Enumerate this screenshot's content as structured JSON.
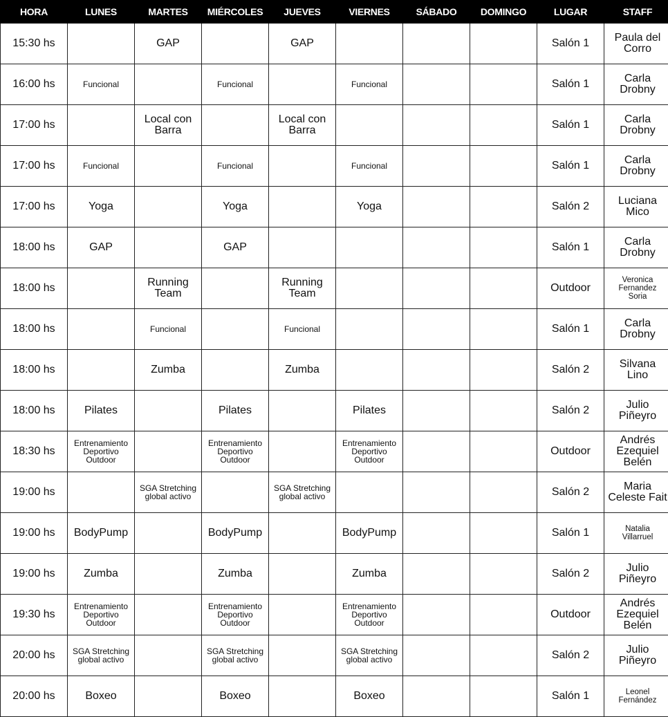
{
  "headers": [
    "HORA",
    "LUNES",
    "MARTES",
    "MIÉRCOLES",
    "JUEVES",
    "VIERNES",
    "SÁBADO",
    "DOMINGO",
    "LUGAR",
    "STAFF"
  ],
  "rows": [
    [
      "15:30 hs",
      "",
      "GAP",
      "",
      "GAP",
      "",
      "",
      "",
      "Salón 1",
      "Paula del\nCorro"
    ],
    [
      "16:00 hs",
      "Funcional",
      "",
      "Funcional",
      "",
      "Funcional",
      "",
      "",
      "Salón 1",
      "Carla\nDrobny"
    ],
    [
      "17:00 hs",
      "",
      "Local con\nBarra",
      "",
      "Local con\nBarra",
      "",
      "",
      "",
      "Salón 1",
      "Carla\nDrobny"
    ],
    [
      "17:00 hs",
      "Funcional",
      "",
      "Funcional",
      "",
      "Funcional",
      "",
      "",
      "Salón 1",
      "Carla\nDrobny"
    ],
    [
      "17:00 hs",
      "Yoga",
      "",
      "Yoga",
      "",
      "Yoga",
      "",
      "",
      "Salón 2",
      "Luciana\nMico"
    ],
    [
      "18:00 hs",
      "GAP",
      "",
      "GAP",
      "",
      "",
      "",
      "",
      "Salón 1",
      "Carla\nDrobny"
    ],
    [
      "18:00 hs",
      "",
      "Running\nTeam",
      "",
      "Running\nTeam",
      "",
      "",
      "",
      "Outdoor",
      "Veronica\nFernandez\nSoria"
    ],
    [
      "18:00 hs",
      "",
      "Funcional",
      "",
      "Funcional",
      "",
      "",
      "",
      "Salón 1",
      "Carla\nDrobny"
    ],
    [
      "18:00 hs",
      "",
      "Zumba",
      "",
      "Zumba",
      "",
      "",
      "",
      "Salón 2",
      "Silvana\nLino"
    ],
    [
      "18:00 hs",
      "Pilates",
      "",
      "Pilates",
      "",
      "Pilates",
      "",
      "",
      "Salón 2",
      "Julio\nPiñeyro"
    ],
    [
      "18:30 hs",
      "Entrenamiento\nDeportivo\nOutdoor",
      "",
      "Entrenamiento\nDeportivo\nOutdoor",
      "",
      "Entrenamiento\nDeportivo\nOutdoor",
      "",
      "",
      "Outdoor",
      "Andrés\nEzequiel\nBelén"
    ],
    [
      "19:00 hs",
      "",
      "SGA Stretching\nglobal activo",
      "",
      "SGA Stretching\nglobal activo",
      "",
      "",
      "",
      "Salón 2",
      "Maria\nCeleste Fait"
    ],
    [
      "19:00 hs",
      "BodyPump",
      "",
      "BodyPump",
      "",
      "BodyPump",
      "",
      "",
      "Salón 1",
      "Natalia\nVillarruel"
    ],
    [
      "19:00 hs",
      "Zumba",
      "",
      "Zumba",
      "",
      "Zumba",
      "",
      "",
      "Salón 2",
      "Julio\nPiñeyro"
    ],
    [
      "19:30 hs",
      "Entrenamiento\nDeportivo\nOutdoor",
      "",
      "Entrenamiento\nDeportivo\nOutdoor",
      "",
      "Entrenamiento\nDeportivo\nOutdoor",
      "",
      "",
      "Outdoor",
      "Andrés\nEzequiel\nBelén"
    ],
    [
      "20:00 hs",
      "SGA Stretching\nglobal activo",
      "",
      "SGA Stretching\nglobal activo",
      "",
      "SGA Stretching\nglobal activo",
      "",
      "",
      "Salón 2",
      "Julio\nPiñeyro"
    ],
    [
      "20:00 hs",
      "Boxeo",
      "",
      "Boxeo",
      "",
      "Boxeo",
      "",
      "",
      "Salón 1",
      "Leonel\nFernández"
    ]
  ]
}
